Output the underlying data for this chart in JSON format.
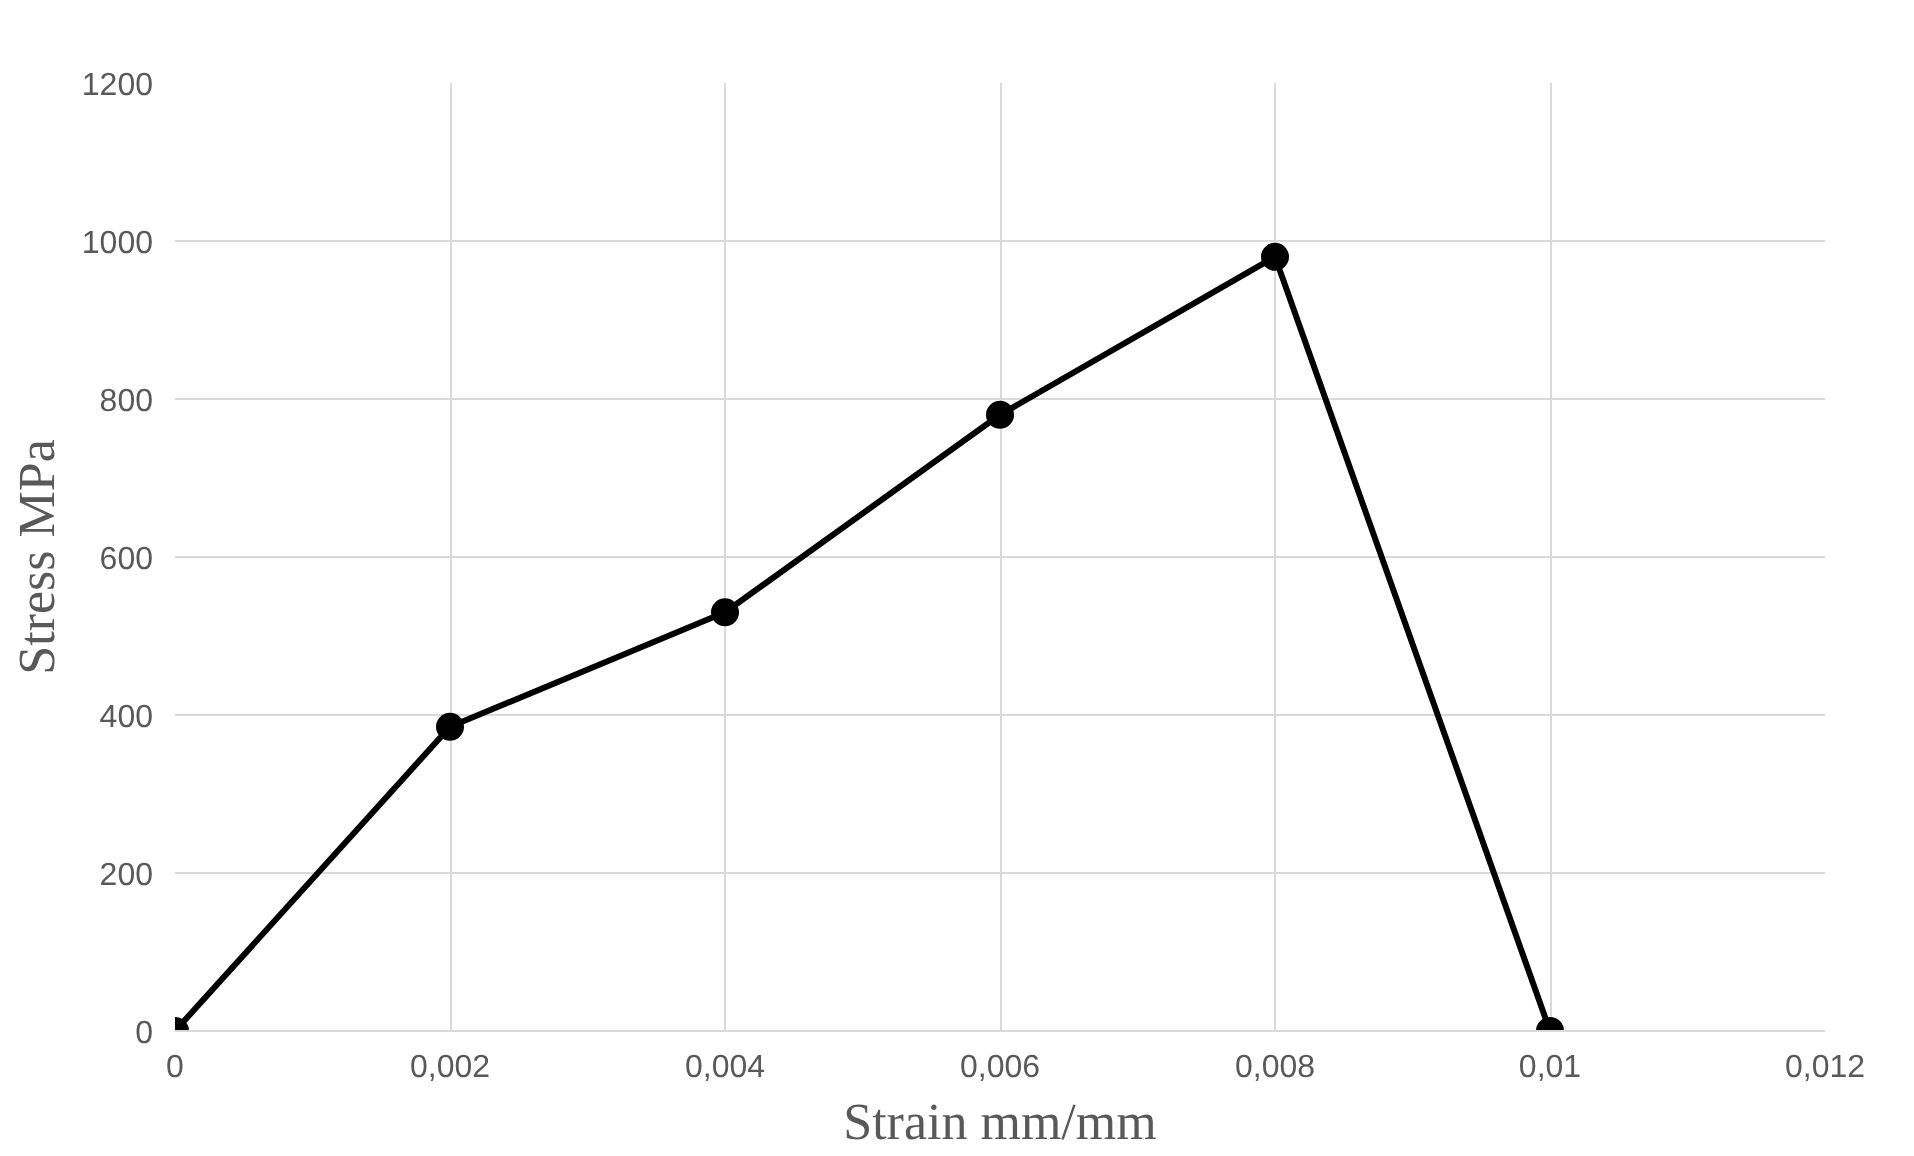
{
  "chart_data": {
    "type": "line",
    "xlabel": "Strain mm/mm",
    "ylabel": "Stress MPa",
    "x": [
      0,
      0.002,
      0.004,
      0.006,
      0.008,
      0.01
    ],
    "series": [
      {
        "color": "#000000",
        "values": [
          0,
          385,
          530,
          780,
          980,
          0
        ]
      }
    ],
    "xlim": [
      0,
      0.012
    ],
    "ylim": [
      0,
      1200
    ],
    "xticks": [
      0,
      {
        "value": 0.002,
        "label": "0,002"
      },
      {
        "value": 0.004,
        "label": "0,004"
      },
      {
        "value": 0.006,
        "label": "0,006"
      },
      {
        "value": 0.008,
        "label": "0,008"
      },
      {
        "value": 0.01,
        "label": "0,01"
      },
      {
        "value": 0.012,
        "label": "0,012"
      }
    ],
    "yticks": [
      0,
      200,
      400,
      600,
      800,
      1000,
      1200
    ],
    "grid": true,
    "marker": "circle",
    "line_style": "solid"
  }
}
